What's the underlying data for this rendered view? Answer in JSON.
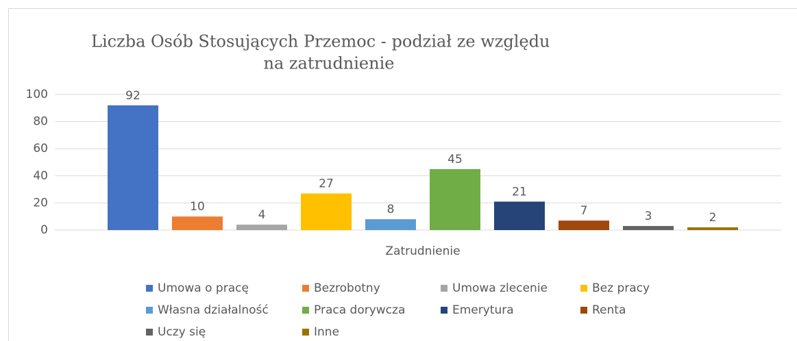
{
  "chart_data": {
    "type": "bar",
    "title": [
      "Liczba Osób Stosujących Przemoc - podział ze względu",
      "na zatrudnienie"
    ],
    "categories": [
      "Zatrudnienie"
    ],
    "series": [
      {
        "name": "Umowa o pracę",
        "color": "#4472c4",
        "values": [
          92
        ]
      },
      {
        "name": "Bezrobotny",
        "color": "#ed7d31",
        "values": [
          10
        ]
      },
      {
        "name": "Umowa zlecenie",
        "color": "#a5a5a5",
        "values": [
          4
        ]
      },
      {
        "name": "Bez pracy",
        "color": "#ffc000",
        "values": [
          27
        ]
      },
      {
        "name": "Własna działalność",
        "color": "#5b9bd5",
        "values": [
          8
        ]
      },
      {
        "name": "Praca dorywcza",
        "color": "#70ad47",
        "values": [
          45
        ]
      },
      {
        "name": "Emerytura",
        "color": "#264478",
        "values": [
          21
        ]
      },
      {
        "name": "Renta",
        "color": "#9e480e",
        "values": [
          7
        ]
      },
      {
        "name": "Uczy się",
        "color": "#636363",
        "values": [
          3
        ]
      },
      {
        "name": "Inne",
        "color": "#997300",
        "values": [
          2
        ]
      }
    ],
    "ylim": [
      0,
      100
    ],
    "yticks": [
      0,
      20,
      40,
      60,
      80,
      100
    ],
    "grid": true,
    "legend": "bottom"
  }
}
